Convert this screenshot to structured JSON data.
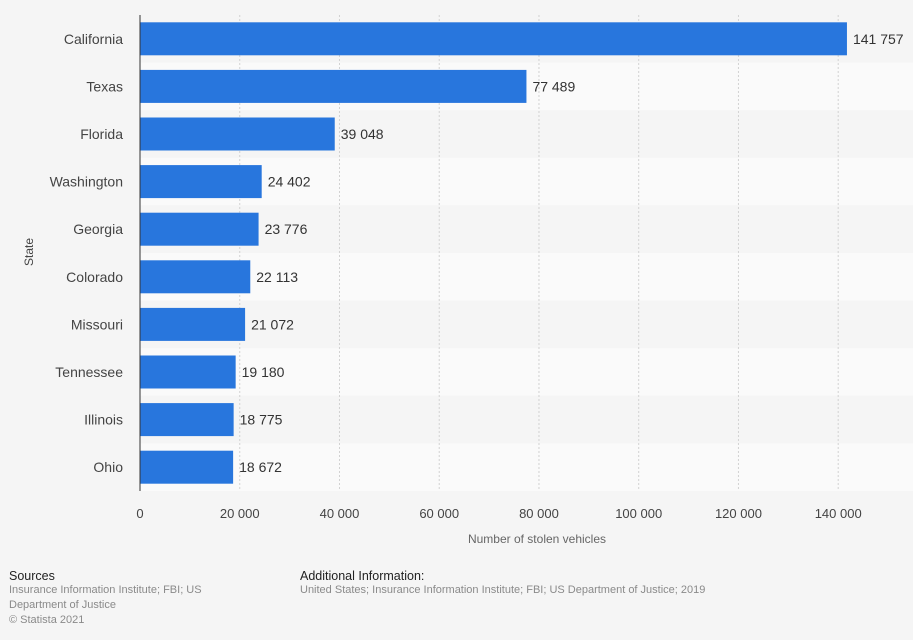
{
  "chart_data": {
    "type": "bar",
    "orientation": "horizontal",
    "categories": [
      "California",
      "Texas",
      "Florida",
      "Washington",
      "Georgia",
      "Colorado",
      "Missouri",
      "Tennessee",
      "Illinois",
      "Ohio"
    ],
    "values": [
      141757,
      77489,
      39048,
      24402,
      23776,
      22113,
      21072,
      19180,
      18775,
      18672
    ],
    "value_labels": [
      "141 757",
      "77 489",
      "39 048",
      "24 402",
      "23 776",
      "22 113",
      "21 072",
      "19 180",
      "18 775",
      "18 672"
    ],
    "xlabel": "Number of stolen vehicles",
    "ylabel": "State",
    "xlim": [
      0,
      155000
    ],
    "xticks": [
      0,
      20000,
      40000,
      60000,
      80000,
      100000,
      120000,
      140000
    ],
    "xtick_labels": [
      "0",
      "20 000",
      "40 000",
      "60 000",
      "80 000",
      "100 000",
      "120 000",
      "140 000"
    ],
    "grid": true,
    "bar_color": "#2876dd"
  },
  "footer": {
    "sources_title": "Sources",
    "sources_text": "Insurance Information Institute; FBI; US Department of Justice",
    "copyright": "© Statista 2021",
    "additional_title": "Additional Information:",
    "additional_text": "United States; Insurance Information Institute; FBI; US Department of Justice; 2019"
  }
}
